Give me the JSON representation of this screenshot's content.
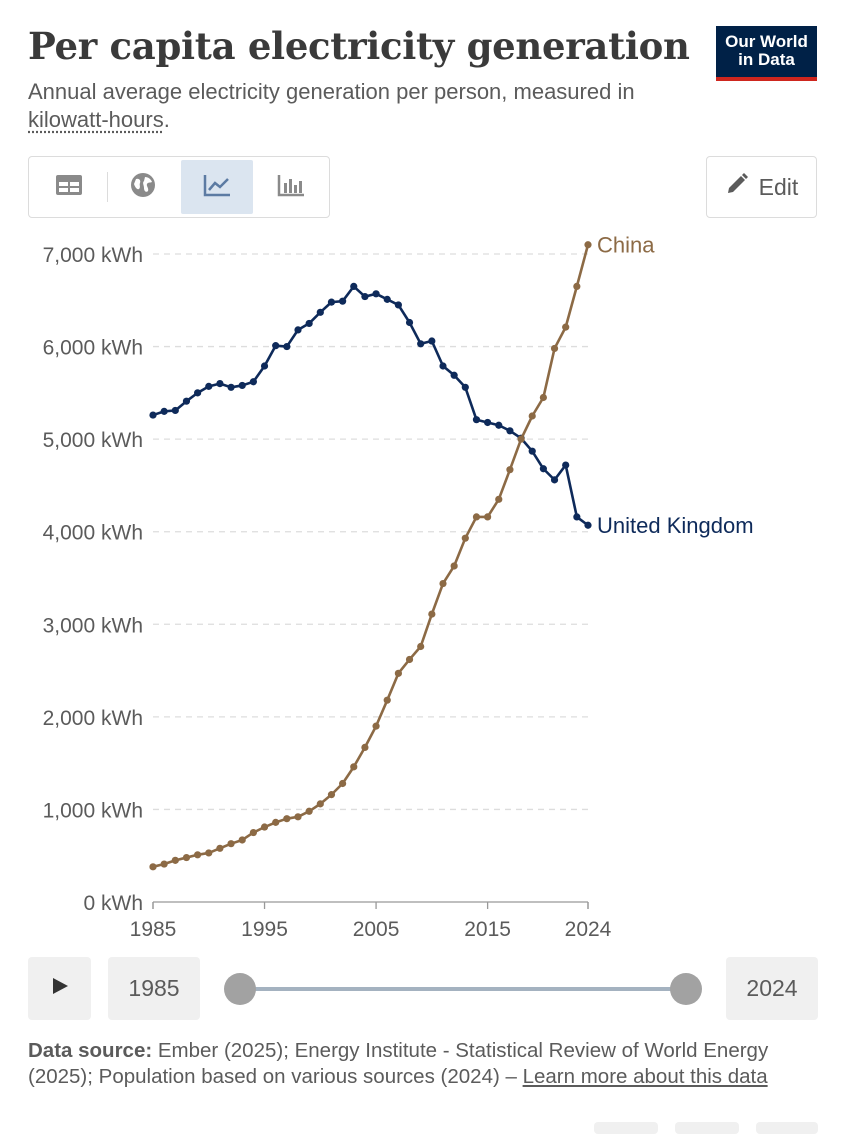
{
  "header": {
    "title": "Per capita electricity generation",
    "subtitle_text": "Annual average electricity generation per person, measured in ",
    "subtitle_link": "kilowatt-hours",
    "subtitle_end": ".",
    "logo_line1": "Our World",
    "logo_line2": "in Data"
  },
  "toolbar": {
    "tabs": [
      {
        "name": "table",
        "icon": "table-icon",
        "active": false
      },
      {
        "name": "map",
        "icon": "globe-icon",
        "active": false
      },
      {
        "name": "chart",
        "icon": "line-chart-icon",
        "active": true
      },
      {
        "name": "bar",
        "icon": "bar-chart-icon",
        "active": false
      }
    ],
    "edit_label": "Edit"
  },
  "timeline": {
    "start_year": "1985",
    "end_year": "2024",
    "range": [
      1985,
      2024
    ]
  },
  "footer": {
    "source_label": "Data source:",
    "source_text": " Ember (2025); Energy Institute - Statistical Review of World Energy (2025); Population based on various sources (2024) – ",
    "learn_more": "Learn more about this data"
  },
  "colors": {
    "uk": "#0e2a5a",
    "china": "#8c6a45",
    "grid": "#dddddd",
    "axis": "#5b5b5b"
  },
  "chart_data": {
    "type": "line",
    "ylim": [
      0,
      7000
    ],
    "xlim": [
      1985,
      2024
    ],
    "yticks": [
      0,
      1000,
      2000,
      3000,
      4000,
      5000,
      6000,
      7000
    ],
    "ytick_labels": [
      "0 kWh",
      "1,000 kWh",
      "2,000 kWh",
      "3,000 kWh",
      "4,000 kWh",
      "5,000 kWh",
      "6,000 kWh",
      "7,000 kWh"
    ],
    "xticks": [
      1985,
      1995,
      2005,
      2015,
      2024
    ],
    "xtick_labels": [
      "1985",
      "1995",
      "2005",
      "2015",
      "2024"
    ],
    "grid": "horizontal-dashed",
    "legend": "inline-line-end",
    "x": [
      1985,
      1986,
      1987,
      1988,
      1989,
      1990,
      1991,
      1992,
      1993,
      1994,
      1995,
      1996,
      1997,
      1998,
      1999,
      2000,
      2001,
      2002,
      2003,
      2004,
      2005,
      2006,
      2007,
      2008,
      2009,
      2010,
      2011,
      2012,
      2013,
      2014,
      2015,
      2016,
      2017,
      2018,
      2019,
      2020,
      2021,
      2022,
      2023,
      2024
    ],
    "series": [
      {
        "name": "United Kingdom",
        "values": [
          5260,
          5300,
          5310,
          5410,
          5500,
          5570,
          5600,
          5560,
          5580,
          5620,
          5790,
          6010,
          6000,
          6180,
          6250,
          6370,
          6480,
          6490,
          6650,
          6540,
          6570,
          6510,
          6450,
          6260,
          6030,
          6060,
          5790,
          5690,
          5560,
          5210,
          5180,
          5150,
          5090,
          5010,
          4870,
          4680,
          4560,
          4720,
          4160,
          4070
        ]
      },
      {
        "name": "China",
        "values": [
          380,
          410,
          450,
          480,
          510,
          530,
          580,
          630,
          670,
          750,
          810,
          860,
          900,
          920,
          980,
          1060,
          1160,
          1280,
          1460,
          1670,
          1900,
          2180,
          2470,
          2620,
          2760,
          3110,
          3440,
          3630,
          3930,
          4160,
          4160,
          4350,
          4670,
          5000,
          5250,
          5450,
          5980,
          6210,
          6650,
          7100
        ]
      }
    ]
  }
}
